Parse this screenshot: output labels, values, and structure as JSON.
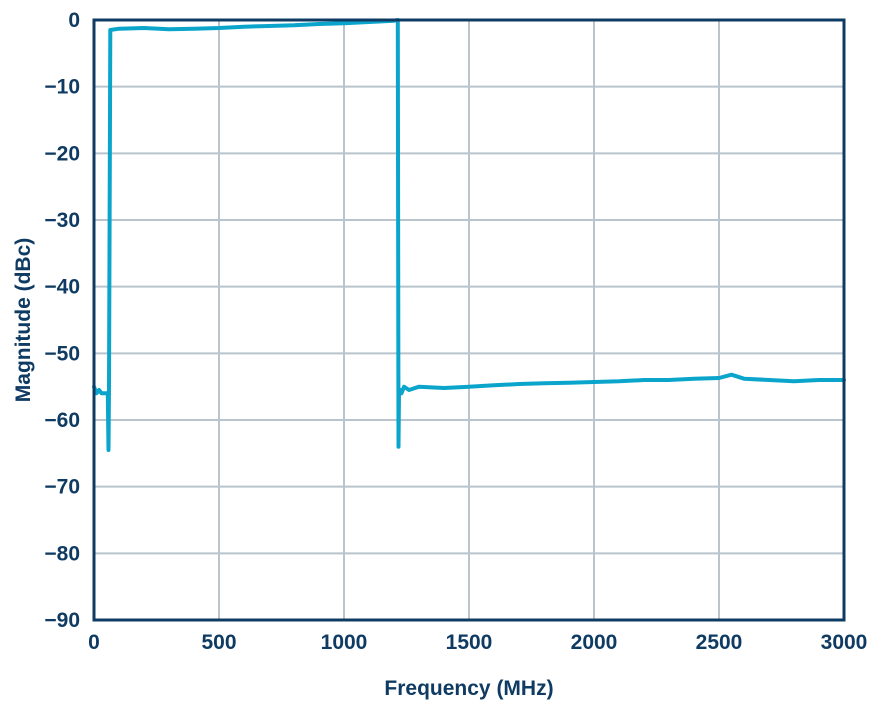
{
  "chart_data": {
    "type": "line",
    "xlabel": "Frequency (MHz)",
    "ylabel": "Magnitude (dBc)",
    "xlim": [
      0,
      3000
    ],
    "ylim": [
      -90,
      0
    ],
    "xticks": [
      0,
      500,
      1000,
      1500,
      2000,
      2500,
      3000
    ],
    "yticks": [
      0,
      -10,
      -20,
      -30,
      -40,
      -50,
      -60,
      -70,
      -80,
      -90
    ],
    "ytick_labels": [
      "0",
      "−10",
      "−20",
      "−30",
      "−40",
      "−50",
      "−60",
      "−70",
      "−80",
      "−90"
    ],
    "grid": true,
    "series": [
      {
        "color": "#0ba5cc",
        "x": [
          0,
          10,
          20,
          30,
          40,
          50,
          55,
          58,
          60,
          65,
          100,
          200,
          300,
          400,
          500,
          600,
          700,
          800,
          900,
          1000,
          1100,
          1200,
          1215,
          1218,
          1220,
          1225,
          1230,
          1240,
          1260,
          1300,
          1400,
          1500,
          1600,
          1700,
          1800,
          1900,
          2000,
          2100,
          2200,
          2300,
          2400,
          2500,
          2550,
          2600,
          2700,
          2800,
          2900,
          3000
        ],
        "y": [
          -55,
          -56,
          -55.5,
          -56,
          -56,
          -56,
          -56,
          -64.5,
          -55,
          -1.5,
          -1.3,
          -1.2,
          -1.4,
          -1.3,
          -1.2,
          -1.0,
          -0.9,
          -0.8,
          -0.6,
          -0.5,
          -0.3,
          -0.1,
          0,
          -64,
          -56,
          -55.5,
          -56,
          -55,
          -55.5,
          -55,
          -55.2,
          -55,
          -54.8,
          -54.6,
          -54.5,
          -54.4,
          -54.3,
          -54.2,
          -54,
          -54,
          -53.8,
          -53.7,
          -53.2,
          -53.8,
          -54,
          -54.2,
          -54,
          -54
        ]
      }
    ]
  }
}
